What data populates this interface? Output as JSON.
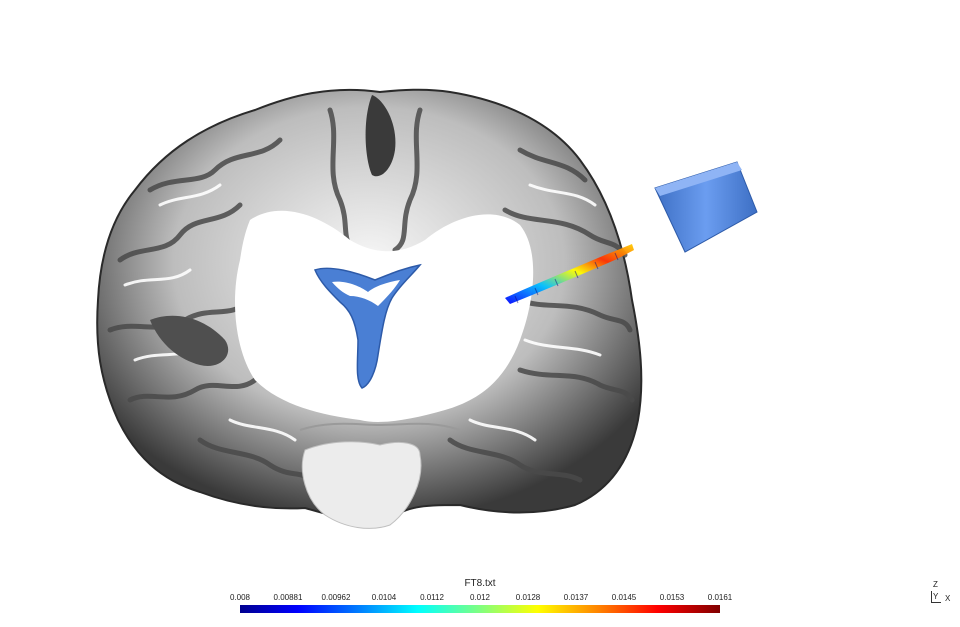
{
  "colorbar": {
    "title": "FT8.txt",
    "ticks": [
      "0.008",
      "0.00881",
      "0.00962",
      "0.0104",
      "0.0112",
      "0.012",
      "0.0128",
      "0.0137",
      "0.0145",
      "0.0153",
      "0.0161"
    ],
    "colors": [
      "#00008f",
      "#0000ff",
      "#0080ff",
      "#00ffff",
      "#80ff80",
      "#ffff00",
      "#ff8000",
      "#ff0000",
      "#800000"
    ]
  },
  "axes": {
    "z": "Z",
    "y": "Y",
    "x": "X"
  },
  "scene": {
    "tissue_color": "#d9d9d9",
    "ventricle_color": "#4a7fd4",
    "transducer_color": "#5b8fe3"
  }
}
